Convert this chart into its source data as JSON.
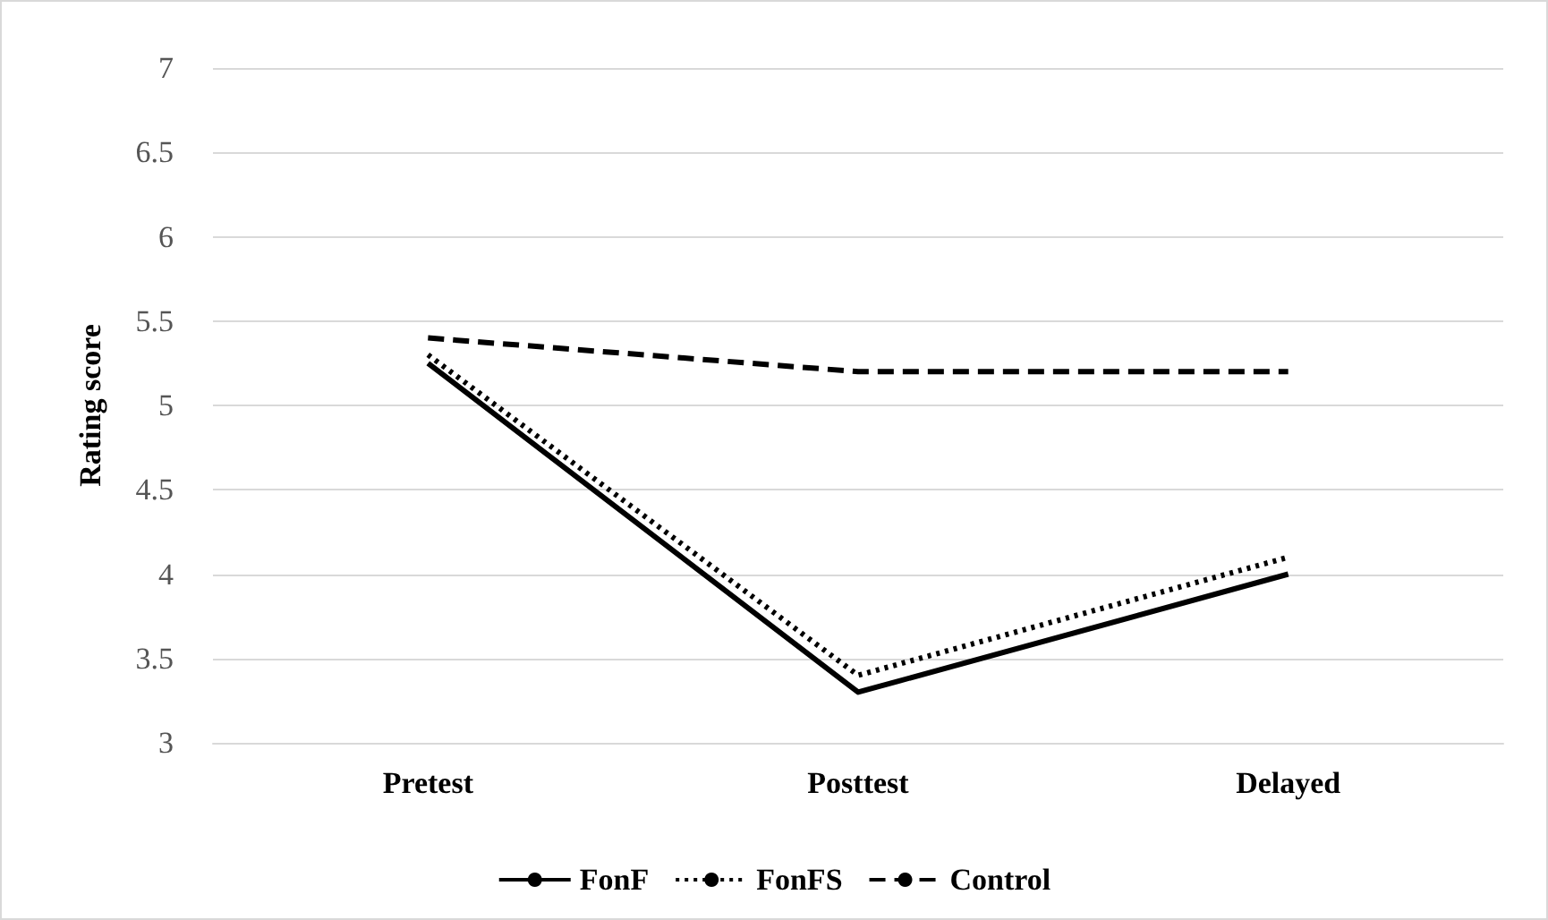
{
  "chart_data": {
    "type": "line",
    "ylabel": "Rating score",
    "categories": [
      "Pretest",
      "Posttest",
      "Delayed"
    ],
    "series": [
      {
        "name": "FonF",
        "color": "#000000",
        "line_style": "solid",
        "values": [
          5.25,
          3.3,
          4.0
        ]
      },
      {
        "name": "FonFS",
        "color": "#000000",
        "line_style": "dotted",
        "values": [
          5.3,
          3.4,
          4.1
        ]
      },
      {
        "name": "Control",
        "color": "#000000",
        "line_style": "dashed",
        "values": [
          5.4,
          5.2,
          5.2
        ]
      }
    ],
    "ylim": [
      3,
      7
    ],
    "yticks": [
      3,
      3.5,
      4,
      4.5,
      5,
      5.5,
      6,
      6.5,
      7
    ],
    "grid": "y",
    "legend": "bottom",
    "marker": "none"
  }
}
